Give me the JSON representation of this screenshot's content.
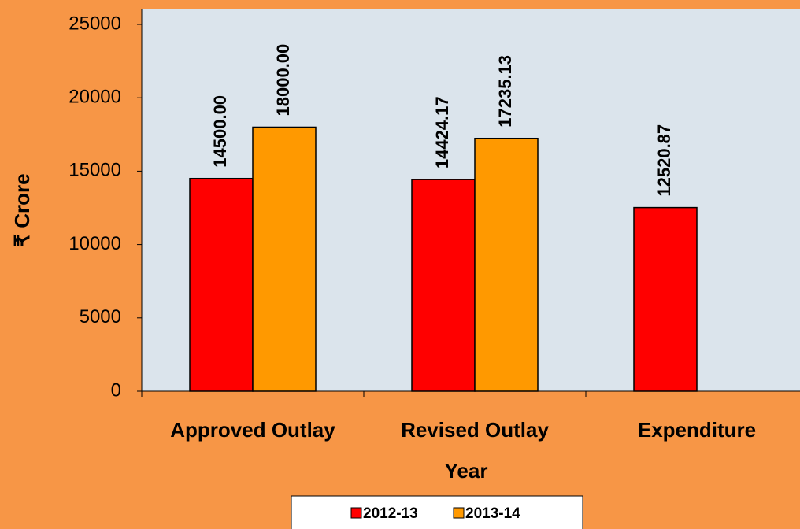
{
  "chart_data": {
    "type": "bar",
    "categories": [
      "Approved Outlay",
      "Revised Outlay",
      "Expenditure"
    ],
    "series": [
      {
        "name": "2012-13",
        "color": "#ff0000",
        "values": [
          14500,
          14424.17,
          12520.87
        ],
        "value_labels": [
          "14500.00",
          "14424.17",
          "12520.87"
        ]
      },
      {
        "name": "2013-14",
        "color": "#ff9900",
        "values": [
          18000,
          17235.13,
          null
        ],
        "value_labels": [
          "18000.00",
          "17235.13",
          null
        ]
      }
    ],
    "ylim": [
      0,
      25000
    ],
    "yticks": [
      0,
      5000,
      10000,
      15000,
      20000,
      25000
    ],
    "xlabel": "Year",
    "ylabel": "₹ Crore",
    "legend": "bottom",
    "grid": false
  }
}
